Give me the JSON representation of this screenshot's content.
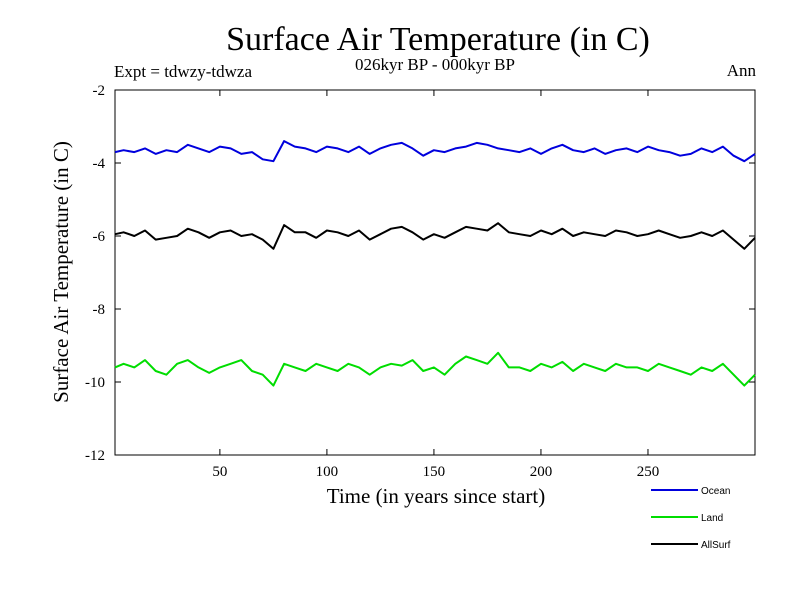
{
  "chart_data": {
    "type": "line",
    "title": "Surface Air Temperature (in C)",
    "subtitle": "026kyr BP - 000kyr BP",
    "left_note": "Expt = tdwzy-tdwza",
    "right_note": "Ann",
    "xlabel": "Time (in years since start)",
    "ylabel": "Surface Air Temperature (in C)",
    "xlim": [
      1,
      300
    ],
    "ylim": [
      -12,
      -2
    ],
    "x_ticks": [
      50,
      100,
      150,
      200,
      250
    ],
    "x_tick_labels": [
      "50",
      "100",
      "150",
      "200",
      "250"
    ],
    "y_ticks": [
      -12,
      -10,
      -8,
      -6,
      -4,
      -2
    ],
    "y_tick_labels": [
      "-12",
      "-10",
      "-8",
      "-6",
      "-4",
      "-2"
    ],
    "grid": false,
    "legend_position": "bottom-right",
    "x": [
      1,
      5,
      10,
      15,
      20,
      25,
      30,
      35,
      40,
      45,
      50,
      55,
      60,
      65,
      70,
      75,
      80,
      85,
      90,
      95,
      100,
      105,
      110,
      115,
      120,
      125,
      130,
      135,
      140,
      145,
      150,
      155,
      160,
      165,
      170,
      175,
      180,
      185,
      190,
      195,
      200,
      205,
      210,
      215,
      220,
      225,
      230,
      235,
      240,
      245,
      250,
      255,
      260,
      265,
      270,
      275,
      280,
      285,
      290,
      295,
      300
    ],
    "series": [
      {
        "name": "Ocean",
        "color": "#0000dd",
        "values": [
          -3.7,
          -3.65,
          -3.7,
          -3.6,
          -3.75,
          -3.65,
          -3.7,
          -3.5,
          -3.6,
          -3.7,
          -3.55,
          -3.6,
          -3.75,
          -3.7,
          -3.9,
          -3.95,
          -3.4,
          -3.55,
          -3.6,
          -3.7,
          -3.55,
          -3.6,
          -3.7,
          -3.55,
          -3.75,
          -3.6,
          -3.5,
          -3.45,
          -3.6,
          -3.8,
          -3.65,
          -3.7,
          -3.6,
          -3.55,
          -3.45,
          -3.5,
          -3.6,
          -3.65,
          -3.7,
          -3.6,
          -3.75,
          -3.6,
          -3.5,
          -3.65,
          -3.7,
          -3.6,
          -3.75,
          -3.65,
          -3.6,
          -3.7,
          -3.55,
          -3.65,
          -3.7,
          -3.8,
          -3.75,
          -3.6,
          -3.7,
          -3.55,
          -3.8,
          -3.95,
          -3.75
        ]
      },
      {
        "name": "Land",
        "color": "#00dd00",
        "values": [
          -9.6,
          -9.5,
          -9.6,
          -9.4,
          -9.7,
          -9.8,
          -9.5,
          -9.4,
          -9.6,
          -9.75,
          -9.6,
          -9.5,
          -9.4,
          -9.7,
          -9.8,
          -10.1,
          -9.5,
          -9.6,
          -9.7,
          -9.5,
          -9.6,
          -9.7,
          -9.5,
          -9.6,
          -9.8,
          -9.6,
          -9.5,
          -9.55,
          -9.4,
          -9.7,
          -9.6,
          -9.8,
          -9.5,
          -9.3,
          -9.4,
          -9.5,
          -9.2,
          -9.6,
          -9.6,
          -9.7,
          -9.5,
          -9.6,
          -9.45,
          -9.7,
          -9.5,
          -9.6,
          -9.7,
          -9.5,
          -9.6,
          -9.6,
          -9.7,
          -9.5,
          -9.6,
          -9.7,
          -9.8,
          -9.6,
          -9.7,
          -9.5,
          -9.8,
          -10.1,
          -9.8
        ]
      },
      {
        "name": "AllSurf",
        "color": "#000000",
        "values": [
          -5.95,
          -5.9,
          -6.0,
          -5.85,
          -6.1,
          -6.05,
          -6.0,
          -5.8,
          -5.9,
          -6.05,
          -5.9,
          -5.85,
          -6.0,
          -5.95,
          -6.1,
          -6.35,
          -5.7,
          -5.9,
          -5.9,
          -6.05,
          -5.85,
          -5.9,
          -6.0,
          -5.85,
          -6.1,
          -5.95,
          -5.8,
          -5.75,
          -5.9,
          -6.1,
          -5.95,
          -6.05,
          -5.9,
          -5.75,
          -5.8,
          -5.85,
          -5.65,
          -5.9,
          -5.95,
          -6.0,
          -5.85,
          -5.95,
          -5.8,
          -6.0,
          -5.9,
          -5.95,
          -6.0,
          -5.85,
          -5.9,
          -6.0,
          -5.95,
          -5.85,
          -5.95,
          -6.05,
          -6.0,
          -5.9,
          -6.0,
          -5.85,
          -6.1,
          -6.35,
          -6.05
        ]
      }
    ]
  }
}
